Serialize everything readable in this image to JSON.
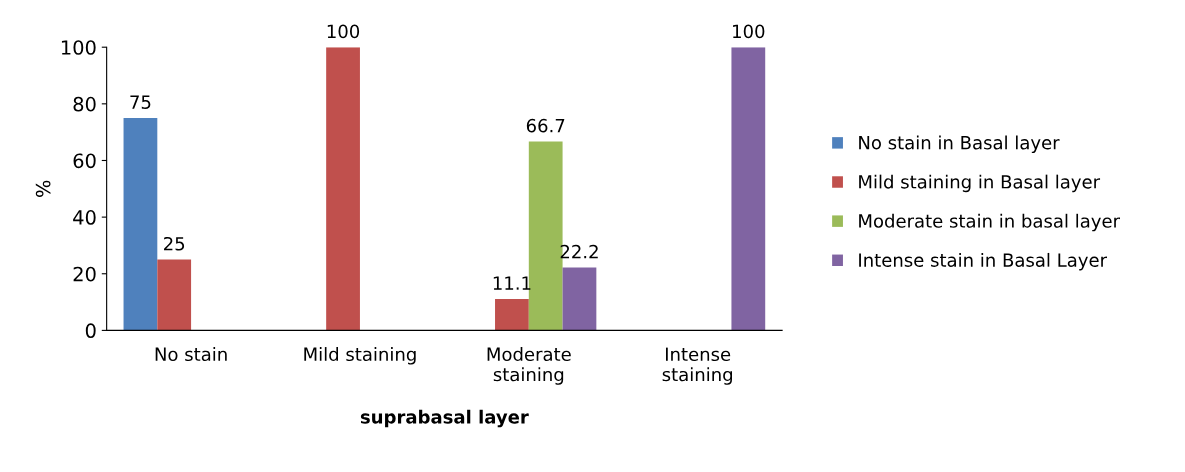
{
  "chart_data": {
    "type": "bar",
    "xlabel": "suprabasal layer",
    "ylabel": "%",
    "categories": [
      "No stain",
      "Mild staining",
      "Moderate\nstaining",
      "Intense\nstaining"
    ],
    "series": [
      {
        "name": "No stain in Basal layer",
        "color": "#4f81bd",
        "values": [
          75,
          null,
          null,
          null
        ]
      },
      {
        "name": "Mild staining in Basal layer",
        "color": "#c0504d",
        "values": [
          25,
          100,
          11.1,
          null
        ]
      },
      {
        "name": "Moderate stain in basal layer",
        "color": "#9bbb59",
        "values": [
          null,
          null,
          66.7,
          null
        ]
      },
      {
        "name": "Intense stain in Basal Layer",
        "color": "#8064a2",
        "values": [
          null,
          null,
          22.2,
          100
        ]
      }
    ],
    "ylim": [
      0,
      100
    ],
    "yticks": [
      0,
      20,
      40,
      60,
      80,
      100
    ],
    "grid": false,
    "legend": "right",
    "data_labels": true
  }
}
